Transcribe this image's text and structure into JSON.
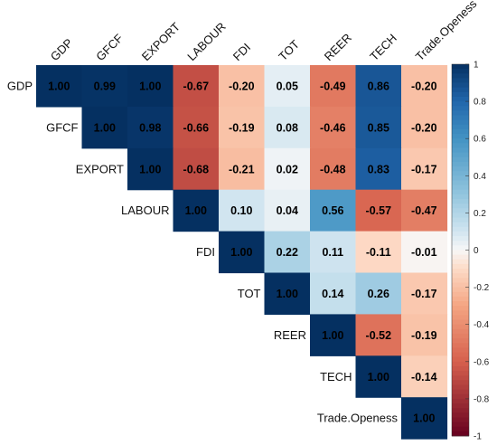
{
  "chart_data": {
    "type": "heatmap",
    "layout": "upper-triangle",
    "variables": [
      "GDP",
      "GFCF",
      "EXPORT",
      "LABOUR",
      "FDI",
      "TOT",
      "REER",
      "TECH",
      "Trade.Openess"
    ],
    "values": [
      [
        1.0,
        0.99,
        1.0,
        -0.67,
        -0.2,
        0.05,
        -0.49,
        0.86,
        -0.2
      ],
      [
        null,
        1.0,
        0.98,
        -0.66,
        -0.19,
        0.08,
        -0.46,
        0.85,
        -0.2
      ],
      [
        null,
        null,
        1.0,
        -0.68,
        -0.21,
        0.02,
        -0.48,
        0.83,
        -0.17
      ],
      [
        null,
        null,
        null,
        1.0,
        0.1,
        0.04,
        0.56,
        -0.57,
        -0.47
      ],
      [
        null,
        null,
        null,
        null,
        1.0,
        0.22,
        0.11,
        -0.11,
        -0.01
      ],
      [
        null,
        null,
        null,
        null,
        null,
        1.0,
        0.14,
        0.26,
        -0.17
      ],
      [
        null,
        null,
        null,
        null,
        null,
        null,
        1.0,
        -0.52,
        -0.19
      ],
      [
        null,
        null,
        null,
        null,
        null,
        null,
        null,
        1.0,
        -0.14
      ],
      [
        null,
        null,
        null,
        null,
        null,
        null,
        null,
        null,
        1.0
      ]
    ],
    "labels": [
      [
        "1.00",
        "0.99",
        "1.00",
        "-0.67",
        "-0.20",
        "0.05",
        "-0.49",
        "0.86",
        "-0.20"
      ],
      [
        null,
        "1.00",
        "0.98",
        "-0.66",
        "-0.19",
        "0.08",
        "-0.46",
        "0.85",
        "-0.20"
      ],
      [
        null,
        null,
        "1.00",
        "-0.68",
        "-0.21",
        "0.02",
        "-0.48",
        "0.83",
        "-0.17"
      ],
      [
        null,
        null,
        null,
        "1.00",
        "0.10",
        "0.04",
        "0.56",
        "-0.57",
        "-0.47"
      ],
      [
        null,
        null,
        null,
        null,
        "1.00",
        "0.22",
        "0.11",
        "-0.11",
        "-0.01"
      ],
      [
        null,
        null,
        null,
        null,
        null,
        "1.00",
        "0.14",
        "0.26",
        "-0.17"
      ],
      [
        null,
        null,
        null,
        null,
        null,
        null,
        "1.00",
        "-0.52",
        "-0.19"
      ],
      [
        null,
        null,
        null,
        null,
        null,
        null,
        null,
        "1.00",
        "-0.14"
      ],
      [
        null,
        null,
        null,
        null,
        null,
        null,
        null,
        null,
        "1.00"
      ]
    ],
    "colorbar": {
      "range": [
        -1,
        1
      ],
      "ticks": [
        "1",
        "0.8",
        "0.6",
        "0.4",
        "0.2",
        "0",
        "-0.2",
        "-0.4",
        "-0.6",
        "-0.8",
        "-1"
      ],
      "colors": {
        "negative": "#67001F",
        "mid_negative": "#F4A582",
        "zero": "#F7F7F7",
        "mid_positive": "#92C5DE",
        "positive": "#053061"
      }
    },
    "legend_position": "right"
  }
}
